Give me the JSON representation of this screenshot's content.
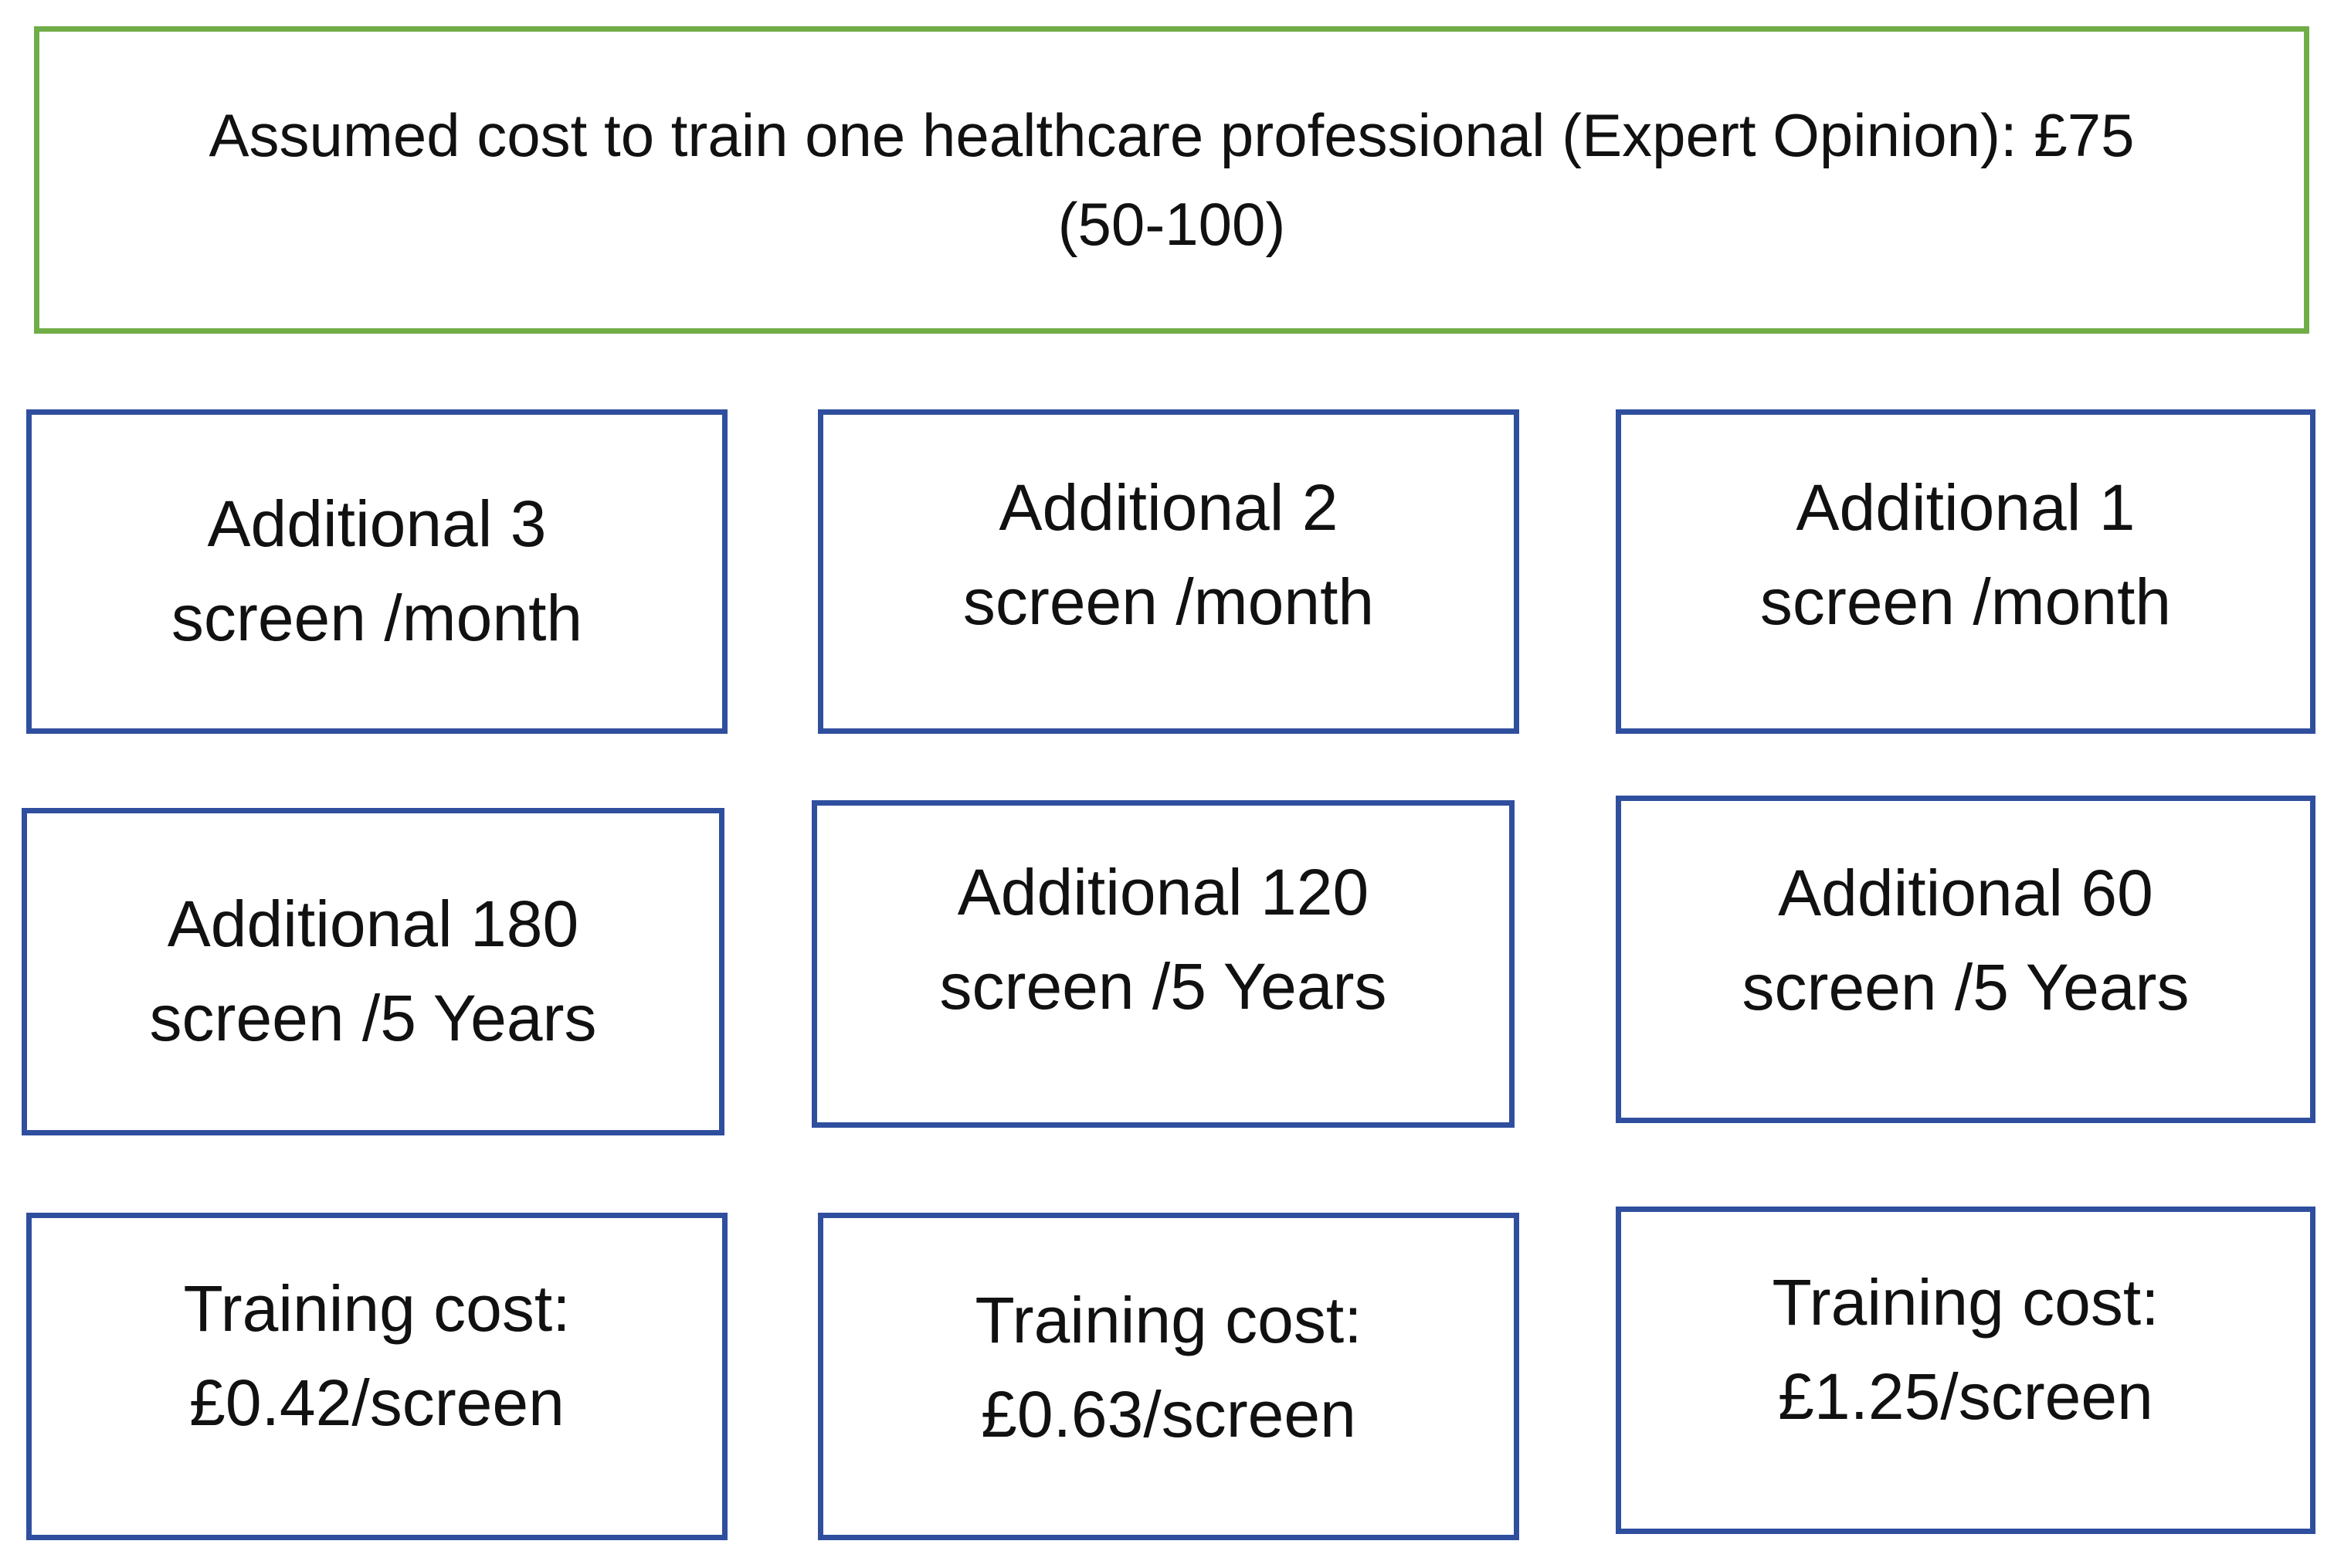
{
  "header": {
    "line1": "Assumed cost to train one healthcare professional (Expert Opinion): £75",
    "line2": "(50-100)",
    "border_color": "#70ad47"
  },
  "box_border_color": "#2f4f9e",
  "rows": {
    "screens_per_month": [
      {
        "line1": "Additional 3",
        "line2": "screen /month"
      },
      {
        "line1": "Additional 2",
        "line2": "screen /month"
      },
      {
        "line1": "Additional 1",
        "line2": "screen /month"
      }
    ],
    "screens_per_5_years": [
      {
        "line1": "Additional 180",
        "line2": "screen /5 Years"
      },
      {
        "line1": "Additional 120",
        "line2": "screen /5 Years"
      },
      {
        "line1": "Additional 60",
        "line2": "screen /5 Years"
      }
    ],
    "training_cost": [
      {
        "line1": "Training cost:",
        "line2": "£0.42/screen"
      },
      {
        "line1": "Training cost:",
        "line2": "£0.63/screen"
      },
      {
        "line1": "Training cost:",
        "line2": "£1.25/screen"
      }
    ]
  }
}
